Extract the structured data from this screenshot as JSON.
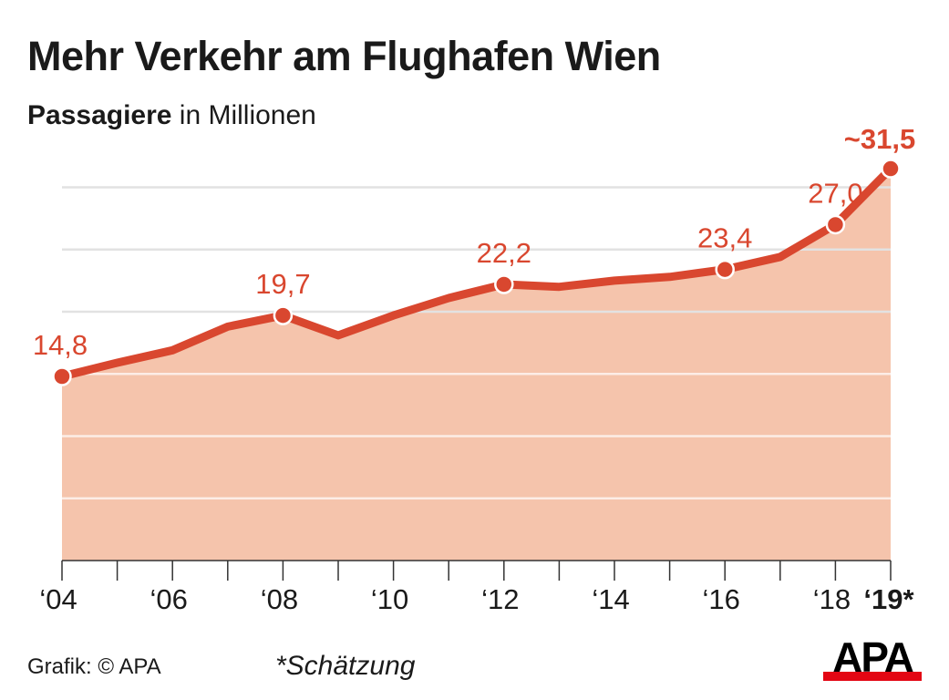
{
  "chart_data": {
    "type": "area",
    "title": "Mehr Verkehr am Flughafen Wien",
    "subtitle_bold": "Passagiere",
    "subtitle_rest": " in Millionen",
    "xlabel": "",
    "ylabel": "Passagiere in Millionen",
    "x": [
      2004,
      2005,
      2006,
      2007,
      2008,
      2009,
      2010,
      2011,
      2012,
      2013,
      2014,
      2015,
      2016,
      2017,
      2018,
      2019
    ],
    "values": [
      14.8,
      15.9,
      16.9,
      18.8,
      19.7,
      18.1,
      19.7,
      21.1,
      22.2,
      22.0,
      22.5,
      22.8,
      23.4,
      24.4,
      27.0,
      31.5
    ],
    "data_labels": [
      {
        "x": 2004,
        "label": "14,8"
      },
      {
        "x": 2008,
        "label": "19,7"
      },
      {
        "x": 2012,
        "label": "22,2"
      },
      {
        "x": 2016,
        "label": "23,4"
      },
      {
        "x": 2018,
        "label": "27,0"
      },
      {
        "x": 2019,
        "label": "~31,5",
        "bold": true
      }
    ],
    "x_tick_labels": [
      {
        "x": 2004,
        "label": "‘04"
      },
      {
        "x": 2006,
        "label": "‘06"
      },
      {
        "x": 2008,
        "label": "‘08"
      },
      {
        "x": 2010,
        "label": "‘10"
      },
      {
        "x": 2012,
        "label": "‘12"
      },
      {
        "x": 2014,
        "label": "‘14"
      },
      {
        "x": 2016,
        "label": "‘16"
      },
      {
        "x": 2018,
        "label": "‘18"
      },
      {
        "x": 2019,
        "label": "‘19*",
        "bold": true
      }
    ],
    "ylim": [
      0,
      32
    ],
    "gridlines": [
      5,
      10,
      15,
      20,
      25,
      30
    ],
    "grid": true,
    "colors": {
      "line": "#d9472f",
      "fill": "#f5c4ac",
      "grid": "#e2e2e2"
    }
  },
  "footer": {
    "source": "Grafik: © APA",
    "note": "*Schätzung",
    "logo": "APA"
  }
}
